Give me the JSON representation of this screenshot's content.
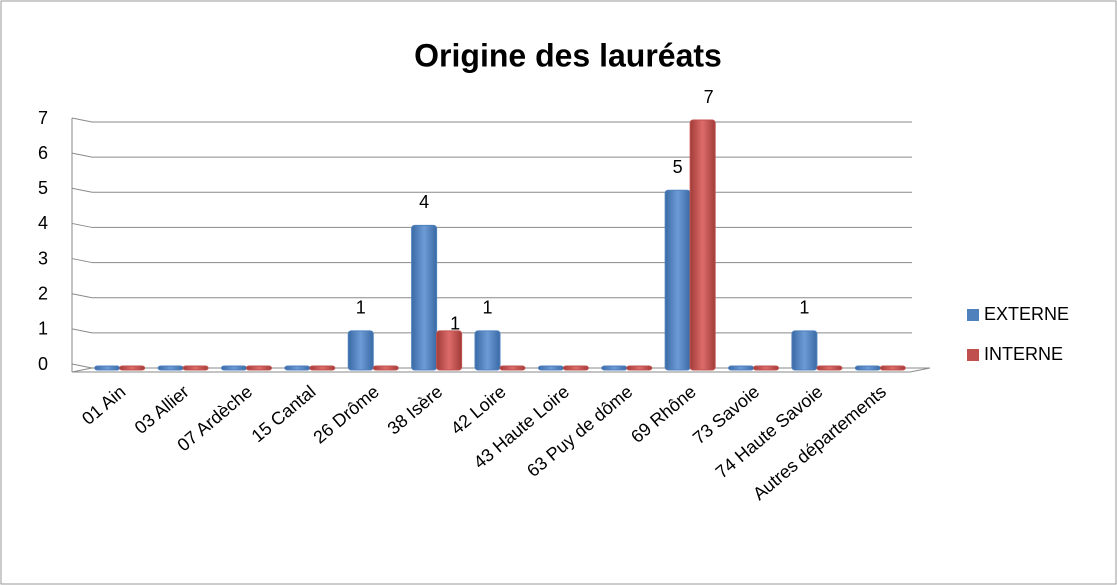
{
  "chart_data": {
    "type": "bar",
    "title": "Origine des lauréats",
    "categories": [
      "01 Ain",
      "03 Allier",
      "07 Ardèche",
      "15 Cantal",
      "26 Drôme",
      "38 Isère",
      "42 Loire",
      "43 Haute Loire",
      "63 Puy de dôme",
      "69 Rhône",
      "73 Savoie",
      "74 Haute Savoie",
      "Autres départements"
    ],
    "series": [
      {
        "name": "EXTERNE",
        "color": "#4f81bd",
        "values": [
          0,
          0,
          0,
          0,
          1,
          4,
          1,
          0,
          0,
          5,
          0,
          1,
          0
        ]
      },
      {
        "name": "INTERNE",
        "color": "#c0504d",
        "values": [
          0,
          0,
          0,
          0,
          0,
          1,
          0,
          0,
          0,
          7,
          0,
          0,
          0
        ]
      }
    ],
    "ylim": [
      0,
      7
    ],
    "yticks": [
      0,
      1,
      2,
      3,
      4,
      5,
      6,
      7
    ],
    "grid": true,
    "legend": "right"
  }
}
